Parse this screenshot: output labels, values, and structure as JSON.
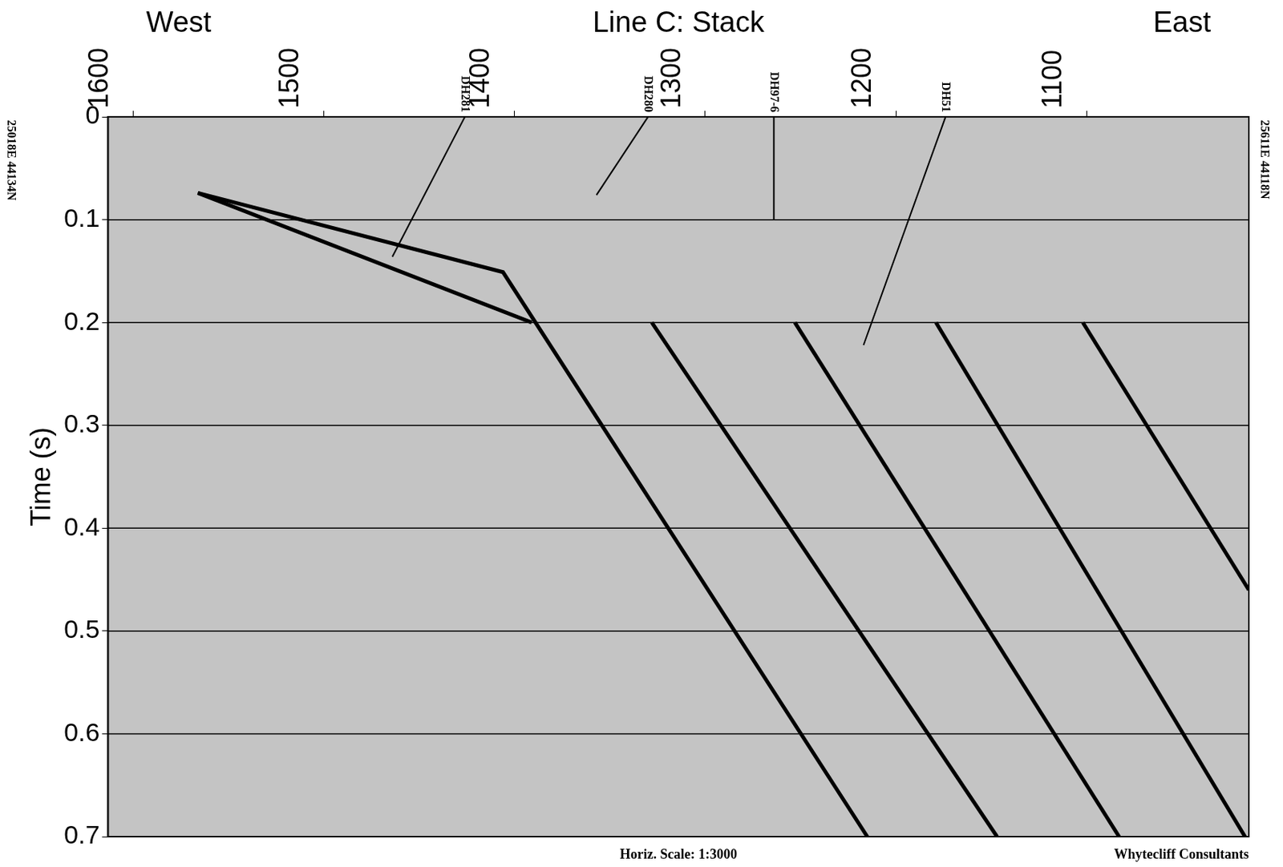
{
  "chart_data": {
    "type": "line",
    "title": "Line C: Stack",
    "annotations": [
      "West",
      "East",
      "Horiz. Scale: 1:3000",
      "Whytecliff Consultants",
      "25018E 44134N",
      "25611E 44118N"
    ],
    "ylabel": "Time (s)",
    "xlim": [
      1613,
      1015
    ],
    "xticks": [
      1600,
      1500,
      1400,
      1300,
      1200,
      1100
    ],
    "ylim": [
      0,
      0.7
    ],
    "yticks": [
      0,
      0.1,
      0.2,
      0.3,
      0.4,
      0.5,
      0.6,
      0.7
    ],
    "grid": true,
    "tick_labels": true,
    "series": [
      {
        "x": [
          1566,
          1406,
          1215
        ],
        "values": [
          0.074,
          0.151,
          0.7
        ],
        "color": "#000000",
        "line_style": "solid",
        "marker": "none"
      },
      {
        "x": [
          1566,
          1391
        ],
        "values": [
          0.074,
          0.2
        ],
        "color": "#000000",
        "line_style": "solid",
        "marker": "none"
      },
      {
        "x": [
          1328,
          1147
        ],
        "values": [
          0.2,
          0.7
        ],
        "color": "#000000",
        "line_style": "solid",
        "marker": "none"
      },
      {
        "x": [
          1253,
          1083
        ],
        "values": [
          0.2,
          0.7
        ],
        "color": "#000000",
        "line_style": "solid",
        "marker": "none"
      },
      {
        "x": [
          1179,
          1017
        ],
        "values": [
          0.2,
          0.7
        ],
        "color": "#000000",
        "line_style": "solid",
        "marker": "none"
      },
      {
        "x": [
          1102,
          1015
        ],
        "values": [
          0.2,
          0.46
        ],
        "color": "#000000",
        "line_style": "solid",
        "marker": "none"
      }
    ],
    "drill_holes": [
      {
        "label": "DH281",
        "x": [
          1426,
          1464
        ],
        "values": [
          0,
          0.136
        ],
        "color": "#000000"
      },
      {
        "label": "DH280",
        "x": [
          1330,
          1357
        ],
        "values": [
          0,
          0.076
        ],
        "color": "#000000"
      },
      {
        "label": "DH97-6",
        "x": [
          1264,
          1264
        ],
        "values": [
          0,
          0.1
        ],
        "color": "#000000"
      },
      {
        "label": "DH51",
        "x": [
          1174,
          1217
        ],
        "values": [
          0,
          0.222
        ],
        "color": "#000000"
      }
    ]
  }
}
